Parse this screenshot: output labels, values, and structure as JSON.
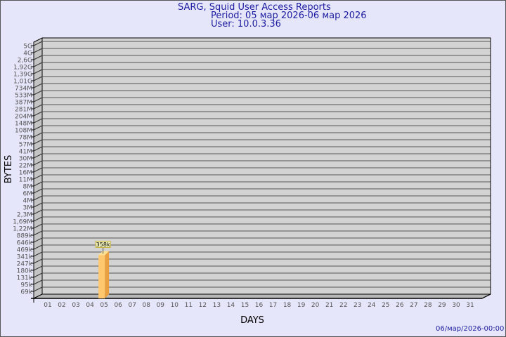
{
  "header": {
    "title": "SARG, Squid User Access Reports",
    "period": "Period: 05 мар 2026-06 мар 2026",
    "user": "User: 10.0.3.36"
  },
  "footer": {
    "timestamp": "06/мар/2026-00:00"
  },
  "chart_data": {
    "type": "bar",
    "xlabel": "DAYS",
    "ylabel": "BYTES",
    "y_scale": "log-like (non-linear tick spacing)",
    "grid": true,
    "three_d": true,
    "categories": [
      "01",
      "02",
      "03",
      "04",
      "05",
      "06",
      "07",
      "08",
      "09",
      "10",
      "11",
      "12",
      "13",
      "14",
      "15",
      "16",
      "17",
      "18",
      "19",
      "20",
      "21",
      "22",
      "23",
      "24",
      "25",
      "26",
      "27",
      "28",
      "29",
      "30",
      "31"
    ],
    "y_ticks": [
      "5G",
      "4G",
      "2,6G",
      "1,92G",
      "1,39G",
      "1,01G",
      "734M",
      "533M",
      "387M",
      "281M",
      "204M",
      "148M",
      "108M",
      "78M",
      "57M",
      "41M",
      "30M",
      "22M",
      "16M",
      "11M",
      "8M",
      "6M",
      "4M",
      "3M",
      "2,3M",
      "1,69M",
      "1,22M",
      "889k",
      "646k",
      "469k",
      "341k",
      "247k",
      "180k",
      "131k",
      "95k",
      "69k"
    ],
    "series": [
      {
        "values": [
          null,
          null,
          null,
          null,
          358000,
          null,
          null,
          null,
          null,
          null,
          null,
          null,
          null,
          null,
          null,
          null,
          null,
          null,
          null,
          null,
          null,
          null,
          null,
          null,
          null,
          null,
          null,
          null,
          null,
          null,
          null
        ],
        "data_labels": {
          "05": "358k"
        }
      }
    ],
    "colors": {
      "bar_front": "#ffc86e",
      "bar_side": "#e8a040",
      "plot": "#d3d3d3",
      "wall": "#c4c4c4",
      "text": "#1c1ca0"
    }
  }
}
